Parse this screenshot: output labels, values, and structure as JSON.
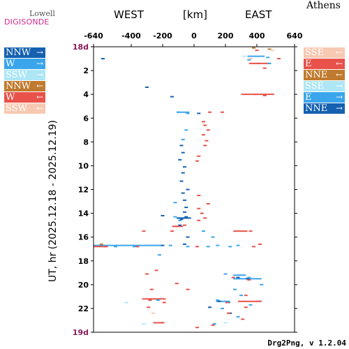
{
  "header": {
    "logo_top": "Lowell",
    "logo_bottom": "DIGISONDE",
    "station": "Athens",
    "west_label": "WEST",
    "unit_label": "[km]",
    "east_label": "EAST"
  },
  "footer": "Drg2Png, v 1.2.04",
  "legend_left": [
    {
      "label": "NNW",
      "arrow": "→",
      "color": "#1560b0"
    },
    {
      "label": "W",
      "arrow": "→",
      "color": "#3aa5ea"
    },
    {
      "label": "SSW",
      "arrow": "→",
      "color": "#aee6f6"
    },
    {
      "label": "NNW",
      "arrow": "←",
      "color": "#c07a2f"
    },
    {
      "label": "W",
      "arrow": "←",
      "color": "#e8524a"
    },
    {
      "label": "SSW",
      "arrow": "←",
      "color": "#f7c9b2"
    }
  ],
  "legend_right": [
    {
      "label": "SSE",
      "arrow": "←",
      "color": "#f7c9b2"
    },
    {
      "label": "E",
      "arrow": "←",
      "color": "#e8524a"
    },
    {
      "label": "NNE",
      "arrow": "←",
      "color": "#c07a2f"
    },
    {
      "label": "SSE",
      "arrow": "→",
      "color": "#aee6f6"
    },
    {
      "label": "E",
      "arrow": "→",
      "color": "#3aa5ea"
    },
    {
      "label": "NNE",
      "arrow": "→",
      "color": "#1560b0"
    }
  ],
  "chart_data": {
    "type": "scatter",
    "ylabel": "UT, hr (2025.12.18 - 2025.12.19)",
    "xlabel": "[km]",
    "xlim": [
      -640,
      640
    ],
    "ylim": [
      0,
      24
    ],
    "y_reversed": true,
    "grid": false,
    "x_ticks": [
      -640,
      -400,
      -200,
      0,
      200,
      400,
      640
    ],
    "y_ticks": [
      {
        "value": 0,
        "label": "18d"
      },
      {
        "value": 2,
        "label": "2"
      },
      {
        "value": 4,
        "label": "4"
      },
      {
        "value": 6,
        "label": "6"
      },
      {
        "value": 8,
        "label": "8"
      },
      {
        "value": 10,
        "label": "10"
      },
      {
        "value": 12,
        "label": "12"
      },
      {
        "value": 14,
        "label": "14"
      },
      {
        "value": 16,
        "label": "16"
      },
      {
        "value": 18,
        "label": "18"
      },
      {
        "value": 20,
        "label": "20"
      },
      {
        "value": 22,
        "label": "22"
      },
      {
        "value": 24,
        "label": "19d"
      }
    ],
    "day_label_color": "#8b1a5c",
    "series": [
      {
        "name": "NNW →",
        "color": "#1560b0",
        "points": [
          [
            -60,
            14.4
          ],
          [
            -80,
            14.5
          ],
          [
            -100,
            14.4
          ],
          [
            -50,
            14.3
          ],
          [
            -30,
            14.4
          ],
          [
            -70,
            12.3
          ],
          [
            -60,
            12.9
          ],
          [
            -50,
            13.5
          ],
          [
            -80,
            8.3
          ],
          [
            -70,
            8.9
          ],
          [
            -90,
            9.5
          ],
          [
            -60,
            10.1
          ],
          [
            -70,
            10.6
          ],
          [
            -80,
            11.3
          ],
          [
            -40,
            12.0
          ],
          [
            -60,
            13.9
          ],
          [
            -90,
            15.0
          ],
          [
            -40,
            16.0
          ],
          [
            -60,
            16.6
          ],
          [
            -200,
            16.7
          ],
          [
            280,
            19.4
          ],
          [
            340,
            19.5
          ],
          [
            160,
            21.4
          ],
          [
            100,
            21.9
          ],
          [
            230,
            22.4
          ],
          [
            -200,
            14.2
          ],
          [
            30,
            5.6
          ],
          [
            -140,
            4.2
          ],
          [
            -300,
            3.4
          ],
          [
            -580,
            1.0
          ]
        ]
      },
      {
        "name": "W →",
        "color": "#3aa5ea",
        "points": [
          [
            -100,
            5.5
          ],
          [
            -40,
            5.6
          ],
          [
            -50,
            7.0
          ],
          [
            -70,
            7.8
          ],
          [
            -120,
            14.3
          ],
          [
            -90,
            14.6
          ],
          [
            60,
            15.5
          ],
          [
            90,
            16.8
          ],
          [
            280,
            16.7
          ],
          [
            -500,
            16.8
          ],
          [
            -380,
            16.8
          ],
          [
            -150,
            16.7
          ],
          [
            -40,
            16.8
          ],
          [
            150,
            16.7
          ],
          [
            230,
            16.8
          ],
          [
            200,
            19.1
          ],
          [
            350,
            19.4
          ],
          [
            430,
            20.0
          ],
          [
            260,
            20.4
          ],
          [
            300,
            20.9
          ],
          [
            150,
            21.3
          ],
          [
            220,
            21.5
          ],
          [
            360,
            21.7
          ],
          [
            180,
            22.0
          ],
          [
            280,
            22.7
          ],
          [
            130,
            23.3
          ],
          [
            -230,
            21.3
          ],
          [
            -220,
            17.5
          ],
          [
            480,
            1.4
          ],
          [
            470,
            0.9
          ],
          [
            350,
            1.1
          ],
          [
            -120,
            13.1
          ],
          [
            120,
            16.0
          ]
        ]
      },
      {
        "name": "SSW →",
        "color": "#aee6f6",
        "points": [
          [
            320,
            0.8
          ],
          [
            -430,
            21.5
          ],
          [
            -320,
            23.3
          ],
          [
            200,
            23.2
          ]
        ]
      },
      {
        "name": "NNW ←",
        "color": "#c07a2f",
        "points": [
          [
            -590,
            16.6
          ],
          [
            480,
            0.2
          ],
          [
            380,
            0.1
          ]
        ]
      },
      {
        "name": "W ←",
        "color": "#e8524a",
        "points": [
          [
            -110,
            15.1
          ],
          [
            -60,
            15.0
          ],
          [
            -140,
            15.5
          ],
          [
            -320,
            15.5
          ],
          [
            30,
            14.6
          ],
          [
            70,
            14.4
          ],
          [
            50,
            14.0
          ],
          [
            30,
            13.6
          ],
          [
            90,
            13.2
          ],
          [
            30,
            12.5
          ],
          [
            20,
            9.6
          ],
          [
            30,
            9.2
          ],
          [
            60,
            6.3
          ],
          [
            70,
            6.6
          ],
          [
            90,
            7.0
          ],
          [
            60,
            7.4
          ],
          [
            80,
            7.9
          ],
          [
            70,
            8.3
          ],
          [
            100,
            5.5
          ],
          [
            180,
            5.5
          ],
          [
            400,
            0.3
          ],
          [
            410,
            1.4
          ],
          [
            450,
            1.8
          ],
          [
            390,
            4.0
          ],
          [
            450,
            4.1
          ],
          [
            360,
            15.5
          ],
          [
            420,
            16.6
          ],
          [
            380,
            16.8
          ],
          [
            20,
            16.8
          ],
          [
            -360,
            16.8
          ],
          [
            -560,
            16.8
          ],
          [
            -300,
            19.1
          ],
          [
            -270,
            20.4
          ],
          [
            -280,
            21.3
          ],
          [
            -290,
            21.9
          ],
          [
            -190,
            21.5
          ],
          [
            -200,
            23.2
          ],
          [
            250,
            19.4
          ],
          [
            350,
            19.6
          ],
          [
            330,
            20.9
          ],
          [
            420,
            21.4
          ],
          [
            210,
            21.5
          ],
          [
            330,
            21.9
          ],
          [
            220,
            22.4
          ],
          [
            -40,
            20.4
          ],
          [
            -110,
            19.9
          ],
          [
            -240,
            18.8
          ],
          [
            20,
            23.6
          ],
          [
            120,
            23.4
          ],
          [
            310,
            22.9
          ],
          [
            540,
            1.0
          ]
        ]
      },
      {
        "name": "SSW ←",
        "color": "#f7c9b2",
        "points": [
          [
            500,
            0.3
          ],
          [
            360,
            1.0
          ],
          [
            -260,
            22.4
          ]
        ]
      }
    ],
    "segments": [
      {
        "color": "#3aa5ea",
        "x1": -640,
        "x2": -200,
        "y": 16.7
      },
      {
        "color": "#e8524a",
        "x1": -640,
        "x2": -560,
        "y": 16.8
      },
      {
        "color": "#1560b0",
        "x1": -100,
        "x2": -40,
        "y": 14.4
      },
      {
        "color": "#e8524a",
        "x1": 300,
        "x2": 510,
        "y": 4.0
      },
      {
        "color": "#3aa5ea",
        "x1": 340,
        "x2": 450,
        "y": 0.8
      },
      {
        "color": "#e8524a",
        "x1": 350,
        "x2": 490,
        "y": 1.4
      },
      {
        "color": "#3aa5ea",
        "x1": 250,
        "x2": 430,
        "y": 19.5
      },
      {
        "color": "#e8524a",
        "x1": 280,
        "x2": 420,
        "y": 21.4
      },
      {
        "color": "#3aa5ea",
        "x1": 140,
        "x2": 230,
        "y": 21.4
      },
      {
        "color": "#e8524a",
        "x1": -330,
        "x2": -180,
        "y": 21.2
      },
      {
        "color": "#e8524a",
        "x1": -140,
        "x2": -70,
        "y": 15.1
      },
      {
        "color": "#3aa5ea",
        "x1": -110,
        "x2": -30,
        "y": 5.5
      },
      {
        "color": "#e8524a",
        "x1": -260,
        "x2": -190,
        "y": 23.2
      },
      {
        "color": "#e8524a",
        "x1": 250,
        "x2": 340,
        "y": 15.5
      },
      {
        "color": "#3aa5ea",
        "x1": 250,
        "x2": 330,
        "y": 19.2
      }
    ]
  }
}
